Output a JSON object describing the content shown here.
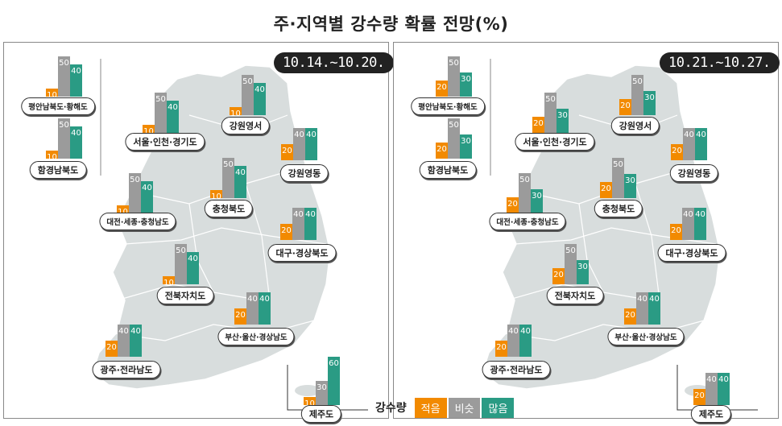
{
  "title": "주·지역별 강수량 확률 전망(%)",
  "colors": {
    "low": "#F28A00",
    "normal": "#9B9B9B",
    "high": "#2A9B84",
    "map": "#D8DDDD"
  },
  "legend": {
    "title": "강수량",
    "items": [
      "적음",
      "비슷",
      "많음"
    ]
  },
  "chart_data": [
    {
      "type": "bar",
      "date_label": "10.14.~10.20.",
      "categories": [
        "평안남북도·황해도",
        "함경남북도",
        "서울·인천·경기도",
        "강원영서",
        "강원영동",
        "대전·세종·충청남도",
        "충청북도",
        "대구·경상북도",
        "전북자치도",
        "부산·울산·경상남도",
        "광주·전라남도",
        "제주도"
      ],
      "series": [
        {
          "name": "적음",
          "values": [
            10,
            10,
            10,
            10,
            20,
            10,
            10,
            20,
            10,
            20,
            20,
            10
          ]
        },
        {
          "name": "비슷",
          "values": [
            50,
            50,
            50,
            50,
            40,
            50,
            50,
            40,
            50,
            40,
            40,
            30
          ]
        },
        {
          "name": "많음",
          "values": [
            40,
            40,
            40,
            40,
            40,
            40,
            40,
            40,
            40,
            40,
            40,
            60
          ]
        }
      ]
    },
    {
      "type": "bar",
      "date_label": "10.21.~10.27.",
      "categories": [
        "평안남북도·황해도",
        "함경남북도",
        "서울·인천·경기도",
        "강원영서",
        "강원영동",
        "대전·세종·충청남도",
        "충청북도",
        "대구·경상북도",
        "전북자치도",
        "부산·울산·경상남도",
        "광주·전라남도",
        "제주도"
      ],
      "series": [
        {
          "name": "적음",
          "values": [
            20,
            20,
            20,
            20,
            20,
            20,
            20,
            20,
            20,
            20,
            20,
            20
          ]
        },
        {
          "name": "비슷",
          "values": [
            50,
            50,
            50,
            50,
            40,
            50,
            50,
            40,
            50,
            40,
            40,
            40
          ]
        },
        {
          "name": "많음",
          "values": [
            30,
            30,
            30,
            30,
            40,
            30,
            30,
            40,
            30,
            40,
            40,
            40
          ]
        }
      ]
    }
  ]
}
